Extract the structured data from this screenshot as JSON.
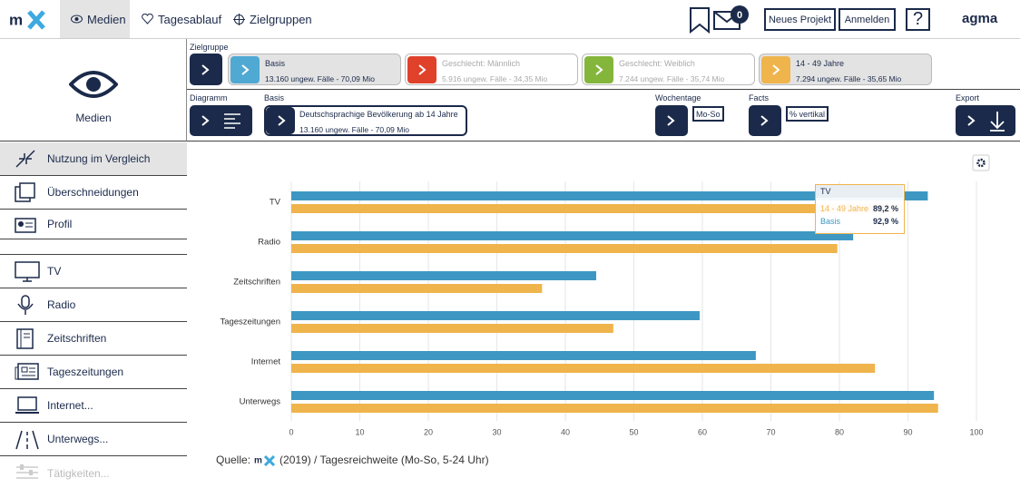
{
  "nav": {
    "items": [
      "Medien",
      "Tagesablauf",
      "Zielgruppen"
    ],
    "badge": "0",
    "buttons": [
      "Neues Projekt",
      "Anmelden",
      "?"
    ],
    "brand": "agma"
  },
  "sidebar": {
    "title": "Medien",
    "items": [
      "Nutzung im Vergleich",
      "Überschneidungen",
      "Profil"
    ],
    "media": [
      "TV",
      "Radio",
      "Zeitschriften",
      "Tageszeitungen",
      "Internet...",
      "Unterwegs...",
      "Tätigkeiten..."
    ]
  },
  "zielgruppe": {
    "label": "Zielgruppe",
    "cards": [
      {
        "title": "Basis",
        "info": "13.160 ungew. Fälle - 70,09 Mio",
        "color": "#4fa9d3"
      },
      {
        "title": "Geschlecht: Männlich",
        "info": "5.916 ungew. Fälle - 34,35 Mio",
        "color": "#e0412b"
      },
      {
        "title": "Geschlecht: Weiblich",
        "info": "7.244 ungew. Fälle - 35,74 Mio",
        "color": "#84b63b"
      },
      {
        "title": "14 - 49 Jahre",
        "info": "7.294 ungew. Fälle - 35,65 Mio",
        "color": "#f0b44c"
      }
    ]
  },
  "settings": {
    "diagramm": "Diagramm",
    "basis_label": "Basis",
    "basis_title": "Deutschsprachige Bevölkerung ab 14 Jahre",
    "basis_info": "13.160 ungew. Fälle - 70,09 Mio",
    "wochentage": "Wochentage",
    "wochentage_value": "Mo-So",
    "facts": "Facts",
    "facts_value": "% vertikal",
    "export": "Export"
  },
  "chart_data": {
    "type": "bar",
    "orientation": "horizontal",
    "categories": [
      "TV",
      "Radio",
      "Zeitschriften",
      "Tageszeitungen",
      "Internet",
      "Unterwegs"
    ],
    "series": [
      {
        "name": "Basis",
        "color": "#3d97c2",
        "values": [
          92.9,
          82.0,
          44.5,
          59.6,
          67.8,
          93.8
        ],
        "value_labels": [
          "92,9 %",
          null,
          null,
          null,
          null,
          null
        ]
      },
      {
        "name": "14 - 49 Jahre",
        "color": "#f0b44c",
        "values": [
          89.2,
          79.7,
          36.6,
          47.0,
          85.2,
          94.4
        ],
        "value_labels": [
          "89,2 %",
          null,
          null,
          null,
          null,
          null
        ]
      }
    ],
    "xlim": [
      0,
      100
    ],
    "xticks": [
      0,
      10,
      20,
      30,
      40,
      50,
      60,
      70,
      80,
      90,
      100
    ],
    "grid": true
  },
  "source": {
    "prefix": "Quelle:",
    "text": "(2019) / Tagesreichweite (Mo-So, 5-24 Uhr)"
  }
}
